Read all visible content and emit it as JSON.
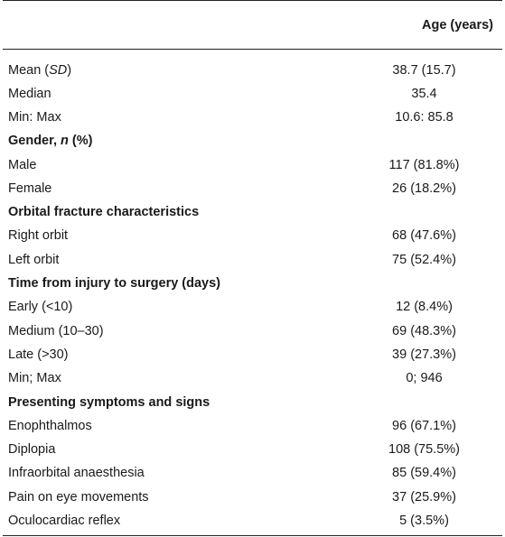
{
  "header": {
    "col1": "",
    "col2": "Age (years)"
  },
  "rows": [
    {
      "type": "data",
      "label_parts": [
        "Mean (",
        "SD",
        ")"
      ],
      "label_italic_index": 1,
      "value": "38.7 (15.7)"
    },
    {
      "type": "data",
      "label": "Median",
      "value": "35.4"
    },
    {
      "type": "data",
      "label": "Min: Max",
      "value": "10.6: 85.8"
    },
    {
      "type": "section",
      "label_parts": [
        "Gender, ",
        "n",
        " (%)"
      ],
      "label_italic_index": 1
    },
    {
      "type": "data",
      "label": "Male",
      "value": "117 (81.8%)"
    },
    {
      "type": "data",
      "label": "Female",
      "value": "26 (18.2%)"
    },
    {
      "type": "section",
      "label": "Orbital fracture characteristics"
    },
    {
      "type": "data",
      "label": "Right orbit",
      "value": "68 (47.6%)"
    },
    {
      "type": "data",
      "label": "Left orbit",
      "value": "75 (52.4%)"
    },
    {
      "type": "section",
      "label": "Time from injury to surgery (days)"
    },
    {
      "type": "data",
      "label": "Early (<10)",
      "value": "12 (8.4%)"
    },
    {
      "type": "data",
      "label": "Medium (10–30)",
      "value": "69 (48.3%)"
    },
    {
      "type": "data",
      "label": "Late (>30)",
      "value": "39 (27.3%)"
    },
    {
      "type": "data",
      "label": "Min; Max",
      "value": "0; 946"
    },
    {
      "type": "section",
      "label": "Presenting symptoms and signs"
    },
    {
      "type": "data",
      "label": "Enophthalmos",
      "value": "96 (67.1%)"
    },
    {
      "type": "data",
      "label": "Diplopia",
      "value": "108 (75.5%)"
    },
    {
      "type": "data",
      "label": "Infraorbital anaesthesia",
      "value": "85 (59.4%)"
    },
    {
      "type": "data",
      "label": "Pain on eye movements",
      "value": "37 (25.9%)"
    },
    {
      "type": "data",
      "label": "Oculocardiac reflex",
      "value": "5 (3.5%)"
    }
  ]
}
